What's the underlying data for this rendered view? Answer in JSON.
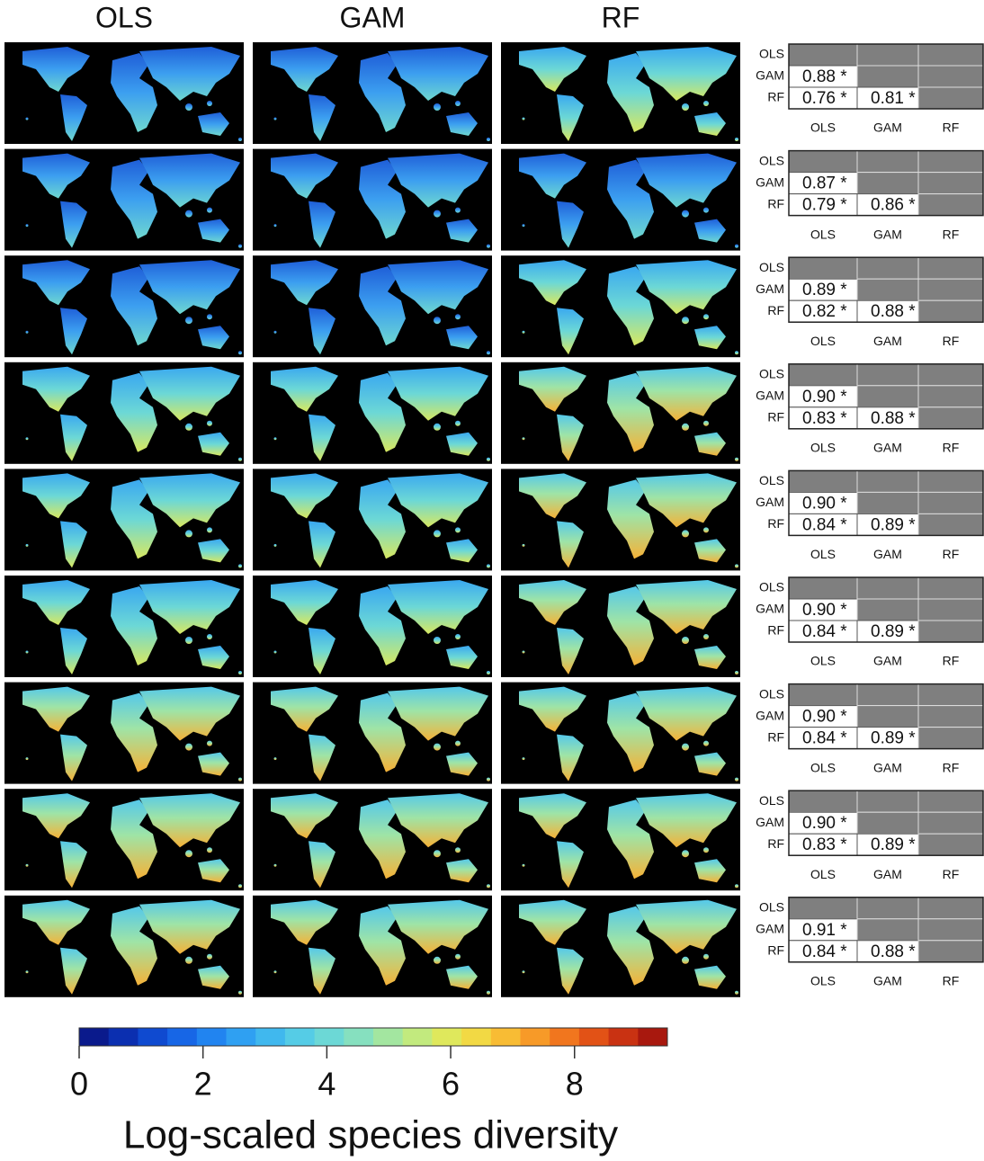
{
  "column_headers": [
    "OLS",
    "GAM",
    "RF"
  ],
  "table_labels": [
    "OLS",
    "GAM",
    "RF"
  ],
  "tables": [
    {
      "cells": [
        [
          "0.88 *"
        ],
        [
          "0.76 *",
          "0.81 *"
        ]
      ]
    },
    {
      "cells": [
        [
          "0.87 *"
        ],
        [
          "0.79 *",
          "0.86 *"
        ]
      ]
    },
    {
      "cells": [
        [
          "0.89 *"
        ],
        [
          "0.82 *",
          "0.88 *"
        ]
      ]
    },
    {
      "cells": [
        [
          "0.90 *"
        ],
        [
          "0.83 *",
          "0.88 *"
        ]
      ]
    },
    {
      "cells": [
        [
          "0.90 *"
        ],
        [
          "0.84 *",
          "0.89 *"
        ]
      ]
    },
    {
      "cells": [
        [
          "0.90 *"
        ],
        [
          "0.84 *",
          "0.89 *"
        ]
      ]
    },
    {
      "cells": [
        [
          "0.90 *"
        ],
        [
          "0.84 *",
          "0.89 *"
        ]
      ]
    },
    {
      "cells": [
        [
          "0.90 *"
        ],
        [
          "0.83 *",
          "0.89 *"
        ]
      ]
    },
    {
      "cells": [
        [
          "0.91 *"
        ],
        [
          "0.84 *",
          "0.88 *"
        ]
      ]
    }
  ],
  "colorbar": {
    "lim": [
      0,
      9.5
    ],
    "ticks": [
      0,
      2,
      4,
      6,
      8
    ],
    "label": "Log-scaled species diversity",
    "colors": [
      "#0a1a8c",
      "#0b2fb0",
      "#0f4ad0",
      "#1766e6",
      "#2184f0",
      "#2fa0f2",
      "#40b8ee",
      "#55cce6",
      "#6cd8d6",
      "#86e0bf",
      "#a3e6a0",
      "#c2ea7e",
      "#dfe85c",
      "#f2d944",
      "#f8bc34",
      "#f79a28",
      "#f1761e",
      "#e25216",
      "#c93212",
      "#a8180e"
    ]
  }
}
